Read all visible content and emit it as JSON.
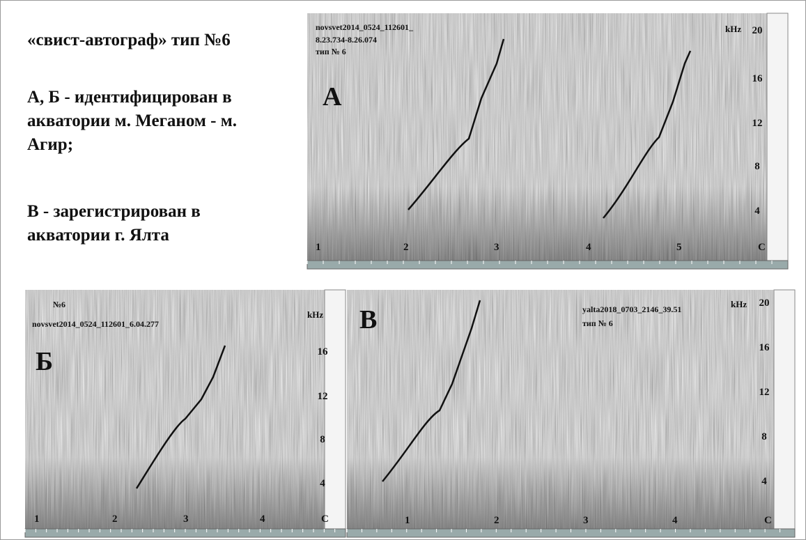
{
  "header": {
    "title": "«свист-автограф» тип №6"
  },
  "description": {
    "line1": "А, Б - идентифицирован в акватории м. Меганом - м. Агир;",
    "line2": "В - зарегистрирован в акватории г. Ялта"
  },
  "panels": [
    {
      "letter": "А",
      "captions": [
        "novsvet2014_0524_112601_",
        "8.23.734-8.26.074",
        "тип № 6"
      ],
      "unit": "kHz",
      "freq_ticks": [
        "20",
        "16",
        "12",
        "8",
        "4"
      ],
      "markers": [
        "1",
        "2",
        "3",
        "4",
        "5",
        "C"
      ]
    },
    {
      "letter": "Б",
      "captions": [
        "№6",
        "novsvet2014_0524_112601_6.04.277"
      ],
      "unit": "kHz",
      "freq_ticks": [
        "16",
        "12",
        "8",
        "4"
      ],
      "markers": [
        "1",
        "2",
        "3",
        "4",
        "C"
      ]
    },
    {
      "letter": "В",
      "captions": [
        "yalta2018_0703_2146_39.51",
        "тип № 6"
      ],
      "unit": "kHz",
      "freq_ticks": [
        "20",
        "16",
        "12",
        "8",
        "4"
      ],
      "markers": [
        "1",
        "2",
        "3",
        "4",
        "C"
      ]
    }
  ]
}
